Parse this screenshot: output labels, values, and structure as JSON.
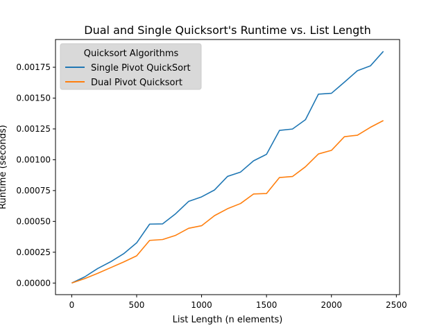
{
  "chart_data": {
    "type": "line",
    "title": "Dual and Single Quicksort's Runtime vs. List Length",
    "xlabel": "List Length (n elements)",
    "ylabel": "Runtime (seconds)",
    "xlim": [
      -125,
      2525
    ],
    "ylim": [
      -9.4e-05,
      0.001975
    ],
    "xticks": [
      0,
      500,
      1000,
      1500,
      2000,
      2500
    ],
    "xtick_labels": [
      "0",
      "500",
      "1000",
      "1500",
      "2000",
      "2500"
    ],
    "yticks": [
      0,
      0.00025,
      0.0005,
      0.00075,
      0.001,
      0.00125,
      0.0015,
      0.00175
    ],
    "ytick_labels": [
      "0.00000",
      "0.00025",
      "0.00050",
      "0.00075",
      "0.00100",
      "0.00125",
      "0.00150",
      "0.00175"
    ],
    "grid": false,
    "legend": {
      "title": "Quicksort Algorithms",
      "placement": "upper-left"
    },
    "x": [
      0,
      100,
      200,
      300,
      400,
      500,
      600,
      700,
      800,
      900,
      1000,
      1100,
      1200,
      1300,
      1400,
      1500,
      1600,
      1700,
      1800,
      1900,
      2000,
      2100,
      2200,
      2300,
      2400
    ],
    "series": [
      {
        "name": "Single Pivot QuickSort",
        "color": "#1f77b4",
        "values": [
          0.0,
          5e-05,
          0.000118,
          0.000173,
          0.000238,
          0.000326,
          0.000478,
          0.00048,
          0.000562,
          0.000662,
          0.000699,
          0.000755,
          0.000865,
          0.0009,
          0.000991,
          0.001044,
          0.001238,
          0.001249,
          0.001325,
          0.001532,
          0.001539,
          0.001629,
          0.001722,
          0.001761,
          0.001879
        ]
      },
      {
        "name": "Dual Pivot Quicksort",
        "color": "#ff7f0e",
        "values": [
          0.0,
          3.6e-05,
          7.9e-05,
          0.000125,
          0.000171,
          0.000221,
          0.000346,
          0.000353,
          0.000387,
          0.000444,
          0.000465,
          0.000547,
          0.000603,
          0.000645,
          0.000722,
          0.000726,
          0.000856,
          0.000864,
          0.000943,
          0.001047,
          0.001076,
          0.001187,
          0.001199,
          0.001263,
          0.001318
        ]
      }
    ]
  }
}
